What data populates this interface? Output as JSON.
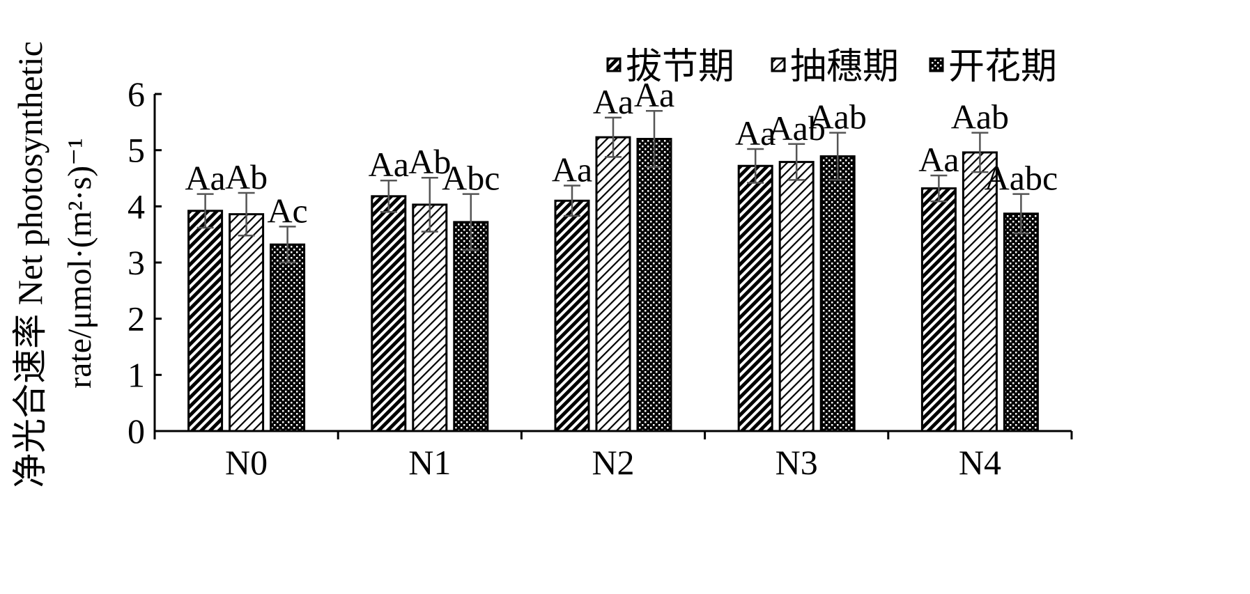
{
  "chart_data": {
    "type": "bar",
    "title": "",
    "ylabel_line1": "净光合速率 Net photosynthetic",
    "ylabel_line2": "rate/μmol·(m²·s)⁻¹",
    "ylim": [
      0,
      6
    ],
    "yticks": [
      "0",
      "1",
      "2",
      "3",
      "4",
      "5",
      "6"
    ],
    "categories": [
      "N0",
      "N1",
      "N2",
      "N3",
      "N4"
    ],
    "grid": false,
    "legend_position": "top-right",
    "series": [
      {
        "name": "拔节期",
        "pattern": "dense-diagonal",
        "values": [
          3.92,
          4.18,
          4.1,
          4.72,
          4.32
        ],
        "errors": [
          0.3,
          0.28,
          0.27,
          0.3,
          0.23
        ],
        "labels": [
          "Aa",
          "Aa",
          "Aa",
          "Aa",
          "Aa"
        ]
      },
      {
        "name": "抽穗期",
        "pattern": "light-diagonal",
        "values": [
          3.86,
          4.03,
          5.23,
          4.79,
          4.96
        ],
        "errors": [
          0.38,
          0.48,
          0.35,
          0.32,
          0.35
        ],
        "labels": [
          "Ab",
          "Ab",
          "Aa",
          "Aab",
          "Aab"
        ]
      },
      {
        "name": "开花期",
        "pattern": "checker",
        "values": [
          3.32,
          3.72,
          5.2,
          4.89,
          3.87
        ],
        "errors": [
          0.32,
          0.5,
          0.5,
          0.42,
          0.35
        ],
        "labels": [
          "Ac",
          "Abc",
          "Aa",
          "Aab",
          "Aabc"
        ]
      }
    ]
  }
}
